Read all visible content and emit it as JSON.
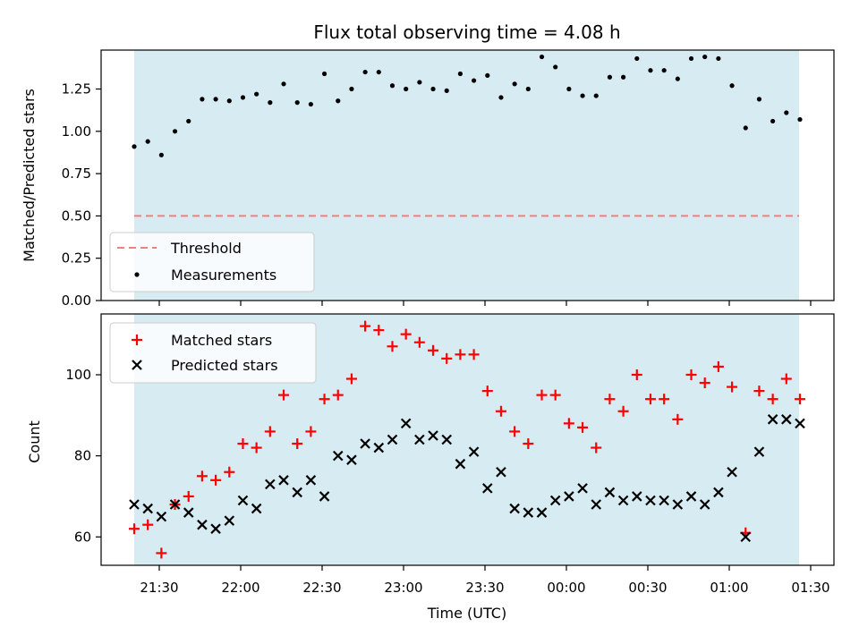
{
  "chart_data": [
    {
      "type": "scatter",
      "title": "Flux total observing time = 4.08 h",
      "xlabel": "",
      "ylabel": "Matched/Predicted stars",
      "ylim": [
        0,
        1.48
      ],
      "yticks": [
        "0.00",
        "0.25",
        "0.50",
        "0.75",
        "1.00",
        "1.25"
      ],
      "shaded_span": true,
      "threshold": {
        "name": "Threshold",
        "value": 0.5,
        "color": "#f08080"
      },
      "legend_position": "lower-left",
      "series": [
        {
          "name": "Measurements",
          "color": "#000000",
          "marker": "dot",
          "values": [
            0.91,
            0.94,
            0.86,
            1.0,
            1.06,
            1.19,
            1.19,
            1.18,
            1.2,
            1.22,
            1.17,
            1.28,
            1.17,
            1.16,
            1.34,
            1.18,
            1.25,
            1.35,
            1.35,
            1.27,
            1.25,
            1.29,
            1.25,
            1.24,
            1.34,
            1.3,
            1.33,
            1.2,
            1.28,
            1.25,
            1.44,
            1.38,
            1.25,
            1.21,
            1.21,
            1.32,
            1.32,
            1.43,
            1.36,
            1.36,
            1.31,
            1.43,
            1.44,
            1.43,
            1.27,
            1.02,
            1.19,
            1.06,
            1.11,
            1.07
          ]
        }
      ]
    },
    {
      "type": "scatter",
      "title": "",
      "xlabel": "Time (UTC)",
      "ylabel": "Count",
      "ylim": [
        53,
        115
      ],
      "yticks": [
        "60",
        "80",
        "100"
      ],
      "shaded_span": true,
      "legend_position": "top-left",
      "xtick_labels": [
        "21:30",
        "22:00",
        "22:30",
        "23:00",
        "23:30",
        "00:00",
        "00:30",
        "01:00",
        "01:30"
      ],
      "series": [
        {
          "name": "Matched stars",
          "color": "#ff0000",
          "marker": "plus",
          "values": [
            62,
            63,
            56,
            68,
            70,
            75,
            74,
            76,
            83,
            82,
            86,
            95,
            83,
            86,
            94,
            95,
            99,
            112,
            111,
            107,
            110,
            108,
            106,
            104,
            105,
            105,
            96,
            91,
            86,
            83,
            95,
            95,
            88,
            87,
            82,
            94,
            91,
            100,
            94,
            94,
            89,
            100,
            98,
            102,
            97,
            61,
            96,
            94,
            99,
            94
          ]
        },
        {
          "name": "Predicted stars",
          "color": "#000000",
          "marker": "x",
          "values": [
            68,
            67,
            65,
            68,
            66,
            63,
            62,
            64,
            69,
            67,
            73,
            74,
            71,
            74,
            70,
            80,
            79,
            83,
            82,
            84,
            88,
            84,
            85,
            84,
            78,
            81,
            72,
            76,
            67,
            66,
            66,
            69,
            70,
            72,
            68,
            71,
            69,
            70,
            69,
            69,
            68,
            70,
            68,
            71,
            76,
            60,
            81,
            89,
            89,
            88
          ]
        }
      ]
    }
  ]
}
